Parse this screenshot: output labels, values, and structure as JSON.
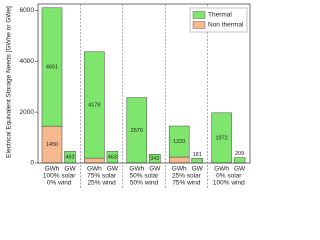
{
  "chart_data": {
    "type": "stacked_bar",
    "ylabel": "Electrical Equivalent Storage Needs [GWhe or GWe]",
    "categories": [
      "GWh",
      "GW",
      "GWh",
      "GW",
      "GWh",
      "GW",
      "GWh",
      "GW",
      "GWh",
      "GW"
    ],
    "groups": [
      [
        "100% solar",
        "0% wind"
      ],
      [
        "75% solar",
        "25% wind"
      ],
      [
        "50% solar",
        "50% wind"
      ],
      [
        "25% solar",
        "75% wind"
      ],
      [
        "0% solar",
        "100% wind"
      ]
    ],
    "series": [
      {
        "name": "Non thermal",
        "color": "#f6b88f",
        "values": [
          1450,
          null,
          193,
          null,
          null,
          null,
          234,
          null,
          null,
          null
        ]
      },
      {
        "name": "Thermal",
        "color": "#7ee66c",
        "values": [
          4651,
          463,
          4178,
          463,
          2570,
          342,
          1220,
          181,
          1972,
          209
        ]
      }
    ],
    "ylim": [
      0,
      6250
    ],
    "yticks": [
      0,
      2000,
      4000,
      6000
    ],
    "legend": "upper right"
  }
}
